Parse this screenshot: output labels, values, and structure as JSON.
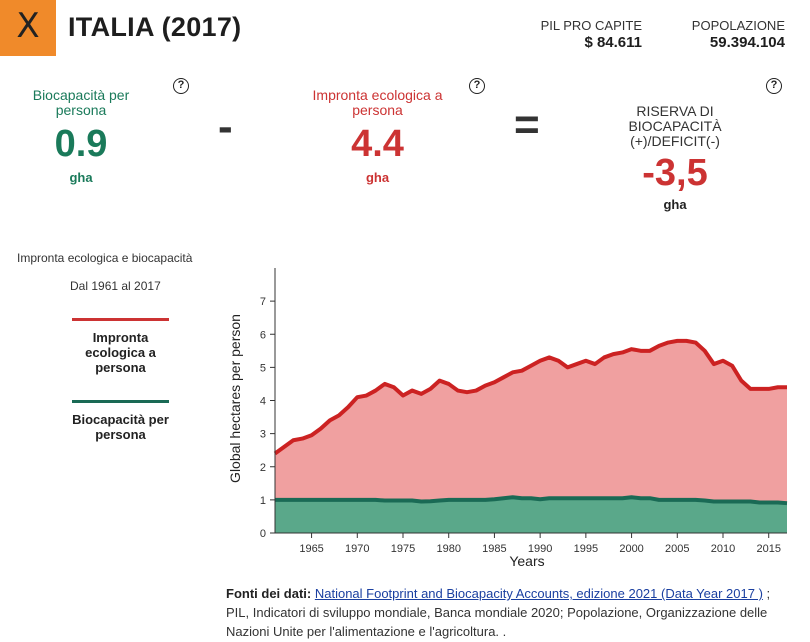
{
  "header": {
    "close_label": "X",
    "country_title": "ITALIA (2017)",
    "pil_label": "PIL PRO CAPITE",
    "pil_value": "$ 84.611",
    "population_label": "POPOLAZIONE",
    "population_value": "59.394.104"
  },
  "metrics": {
    "help_label": "?",
    "biocapacity": {
      "label": "Biocapacità per persona",
      "value": "0.9",
      "unit": "gha"
    },
    "minus": "-",
    "footprint": {
      "label": "Impronta ecologica a persona",
      "value": "4.4",
      "unit": "gha"
    },
    "equals": "=",
    "reserve": {
      "label": "RISERVA DI BIOCAPACITÀ (+)/DEFICIT(-)",
      "value": "-3,5",
      "unit": "gha"
    }
  },
  "chart_panel": {
    "title": "Impronta ecologica e biocapacità",
    "range": "Dal 1961 al 2017",
    "legend_footprint": "Impronta ecologica a persona",
    "legend_biocapacity": "Biocapacità per persona"
  },
  "colors": {
    "footprint_line": "#cc2222",
    "footprint_fill": "#f0a0a0",
    "biocapacity_line": "#1a6a55",
    "biocapacity_fill": "#5aa88a",
    "close_button": "#f08a2a"
  },
  "chart_data": {
    "type": "area",
    "xlabel": "Years",
    "ylabel": "Global hectares per person",
    "xlim": [
      1961,
      2017
    ],
    "ylim": [
      0,
      8
    ],
    "yticks": [
      0,
      1,
      2,
      3,
      4,
      5,
      6,
      7
    ],
    "xticks": [
      1965,
      1970,
      1975,
      1980,
      1985,
      1990,
      1995,
      2000,
      2005,
      2010,
      2015
    ],
    "years": [
      1961,
      1962,
      1963,
      1964,
      1965,
      1966,
      1967,
      1968,
      1969,
      1970,
      1971,
      1972,
      1973,
      1974,
      1975,
      1976,
      1977,
      1978,
      1979,
      1980,
      1981,
      1982,
      1983,
      1984,
      1985,
      1986,
      1987,
      1988,
      1989,
      1990,
      1991,
      1992,
      1993,
      1994,
      1995,
      1996,
      1997,
      1998,
      1999,
      2000,
      2001,
      2002,
      2003,
      2004,
      2005,
      2006,
      2007,
      2008,
      2009,
      2010,
      2011,
      2012,
      2013,
      2014,
      2015,
      2016,
      2017
    ],
    "series": [
      {
        "name": "Impronta ecologica a persona",
        "values": [
          2.4,
          2.6,
          2.8,
          2.85,
          2.95,
          3.15,
          3.4,
          3.55,
          3.8,
          4.1,
          4.15,
          4.3,
          4.5,
          4.4,
          4.15,
          4.3,
          4.2,
          4.35,
          4.6,
          4.5,
          4.3,
          4.25,
          4.3,
          4.45,
          4.55,
          4.7,
          4.85,
          4.9,
          5.05,
          5.2,
          5.3,
          5.2,
          5.0,
          5.1,
          5.2,
          5.1,
          5.3,
          5.4,
          5.45,
          5.55,
          5.5,
          5.5,
          5.65,
          5.75,
          5.8,
          5.8,
          5.75,
          5.5,
          5.1,
          5.2,
          5.05,
          4.6,
          4.35,
          4.35,
          4.35,
          4.4,
          4.4
        ]
      },
      {
        "name": "Biocapacità per persona",
        "values": [
          1.0,
          1.0,
          1.0,
          1.0,
          1.0,
          1.0,
          1.0,
          1.0,
          1.0,
          1.0,
          1.0,
          1.0,
          0.98,
          0.98,
          0.98,
          0.98,
          0.95,
          0.96,
          0.98,
          1.0,
          1.0,
          1.0,
          1.0,
          1.0,
          1.02,
          1.05,
          1.08,
          1.05,
          1.05,
          1.02,
          1.05,
          1.05,
          1.05,
          1.05,
          1.05,
          1.05,
          1.05,
          1.05,
          1.05,
          1.08,
          1.05,
          1.05,
          1.0,
          1.0,
          1.0,
          1.0,
          1.0,
          0.98,
          0.95,
          0.95,
          0.95,
          0.95,
          0.95,
          0.92,
          0.92,
          0.92,
          0.9
        ]
      }
    ]
  },
  "sources": {
    "label": "Fonti dei dati:",
    "link": "National Footprint and Biocapacity Accounts, edizione 2021 (Data Year 2017 )",
    "rest": "; PIL, Indicatori di sviluppo mondiale, Banca mondiale 2020; Popolazione, Organizzazione delle Nazioni Unite per l'alimentazione e l'agricoltura. ."
  }
}
